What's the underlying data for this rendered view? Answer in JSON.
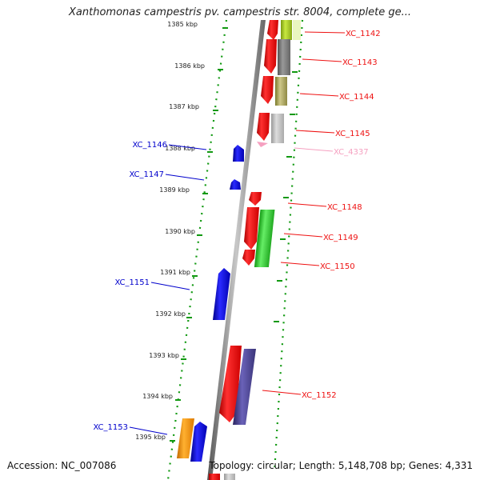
{
  "title": "Xanthomonas campestris pv. campestris str. 8004, complete ge...",
  "accession": "Accession: NC_007086",
  "summary": "Topology: circular; Length: 5,148,708 bp; Genes: 4,331",
  "kbp_labels": [
    "1385 kbp",
    "1386 kbp",
    "1387 kbp",
    "1388 kbp",
    "1389 kbp",
    "1390 kbp",
    "1391 kbp",
    "1392 kbp",
    "1393 kbp",
    "1394 kbp",
    "1395 kbp"
  ],
  "genes_plus": [
    {
      "name": "XC_1142",
      "color": "#ee1111"
    },
    {
      "name": "XC_1143",
      "color": "#ee1111"
    },
    {
      "name": "XC_1144",
      "color": "#ee1111"
    },
    {
      "name": "XC_1145",
      "color": "#ee1111"
    },
    {
      "name": "XC_4337",
      "color": "#f5a0c0"
    },
    {
      "name": "XC_1148",
      "color": "#ee1111"
    },
    {
      "name": "XC_1149",
      "color": "#ee1111"
    },
    {
      "name": "XC_1150",
      "color": "#ee1111"
    },
    {
      "name": "XC_1152",
      "color": "#ee1111"
    }
  ],
  "genes_minus": [
    {
      "name": "XC_1146",
      "color": "#0000cc"
    },
    {
      "name": "XC_1147",
      "color": "#0000cc"
    },
    {
      "name": "XC_1151",
      "color": "#0000cc"
    },
    {
      "name": "XC_1153",
      "color": "#0000cc"
    }
  ]
}
